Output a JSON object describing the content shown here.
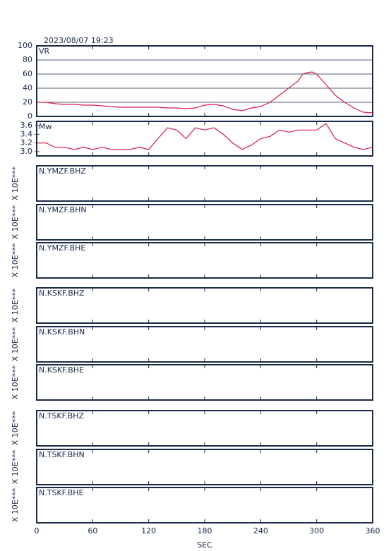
{
  "title": "2023/08/07 19:23",
  "chart_data": [
    {
      "type": "line",
      "label": "VR",
      "color": "#d81b4a",
      "ylim": [
        0,
        100
      ],
      "yticks": [
        0,
        20,
        40,
        60,
        80,
        100
      ],
      "grid": true,
      "xlim": [
        0,
        360
      ],
      "x": [
        0,
        10,
        20,
        30,
        40,
        50,
        60,
        70,
        80,
        90,
        100,
        110,
        120,
        130,
        140,
        150,
        160,
        170,
        180,
        190,
        200,
        210,
        220,
        230,
        240,
        250,
        260,
        270,
        280,
        285,
        290,
        295,
        300,
        310,
        320,
        330,
        340,
        350,
        360
      ],
      "values": [
        20,
        20,
        18,
        17,
        17,
        16,
        16,
        15,
        14,
        13,
        13,
        13,
        13,
        13,
        12,
        12,
        11,
        12,
        16,
        17,
        15,
        10,
        8,
        12,
        14,
        20,
        30,
        40,
        50,
        60,
        62,
        63,
        60,
        45,
        30,
        20,
        12,
        6,
        5
      ]
    },
    {
      "type": "line",
      "label": "Mw",
      "color": "#d81b4a",
      "ylim": [
        2.9,
        3.7
      ],
      "yticks": [
        {
          "value": 3,
          "label": "3.0"
        },
        3.2,
        3.4,
        3.6
      ],
      "grid": false,
      "xlim": [
        0,
        360
      ],
      "x": [
        0,
        10,
        20,
        30,
        40,
        50,
        60,
        70,
        80,
        90,
        100,
        110,
        120,
        130,
        140,
        150,
        160,
        170,
        180,
        190,
        200,
        210,
        220,
        230,
        240,
        250,
        260,
        270,
        280,
        290,
        300,
        310,
        320,
        330,
        340,
        350,
        360
      ],
      "values": [
        3.2,
        3.2,
        3.1,
        3.1,
        3.05,
        3.1,
        3.05,
        3.1,
        3.05,
        3.05,
        3.05,
        3.1,
        3.05,
        3.3,
        3.55,
        3.5,
        3.3,
        3.55,
        3.5,
        3.55,
        3.4,
        3.2,
        3.05,
        3.15,
        3.3,
        3.35,
        3.5,
        3.45,
        3.5,
        3.5,
        3.5,
        3.65,
        3.3,
        3.2,
        3.1,
        3.05,
        3.1
      ]
    },
    {
      "type": "empty",
      "label": "N.YMZF.BHZ",
      "ylabel": "X 10E***"
    },
    {
      "type": "empty",
      "label": "N.YMZF.BHN",
      "ylabel": "X 10E***"
    },
    {
      "type": "empty",
      "label": "N.YMZF.BHE",
      "ylabel": "X 10E***"
    },
    {
      "type": "empty",
      "label": "N.KSKF.BHZ",
      "ylabel": "X 10E***"
    },
    {
      "type": "empty",
      "label": "N.KSKF.BHN",
      "ylabel": "X 10E***"
    },
    {
      "type": "empty",
      "label": "N.KSKF.BHE",
      "ylabel": "X 10E***"
    },
    {
      "type": "empty",
      "label": "N.TSKF.BHZ",
      "ylabel": "X 10E***"
    },
    {
      "type": "empty",
      "label": "N.TSKF.BHN",
      "ylabel": "X 10E***"
    },
    {
      "type": "empty",
      "label": "N.TSKF.BHE",
      "ylabel": "X 10E***",
      "xlabel": "SEC",
      "xlim": [
        0,
        360
      ],
      "xticks": [
        0,
        60,
        120,
        180,
        240,
        300,
        360
      ]
    }
  ]
}
